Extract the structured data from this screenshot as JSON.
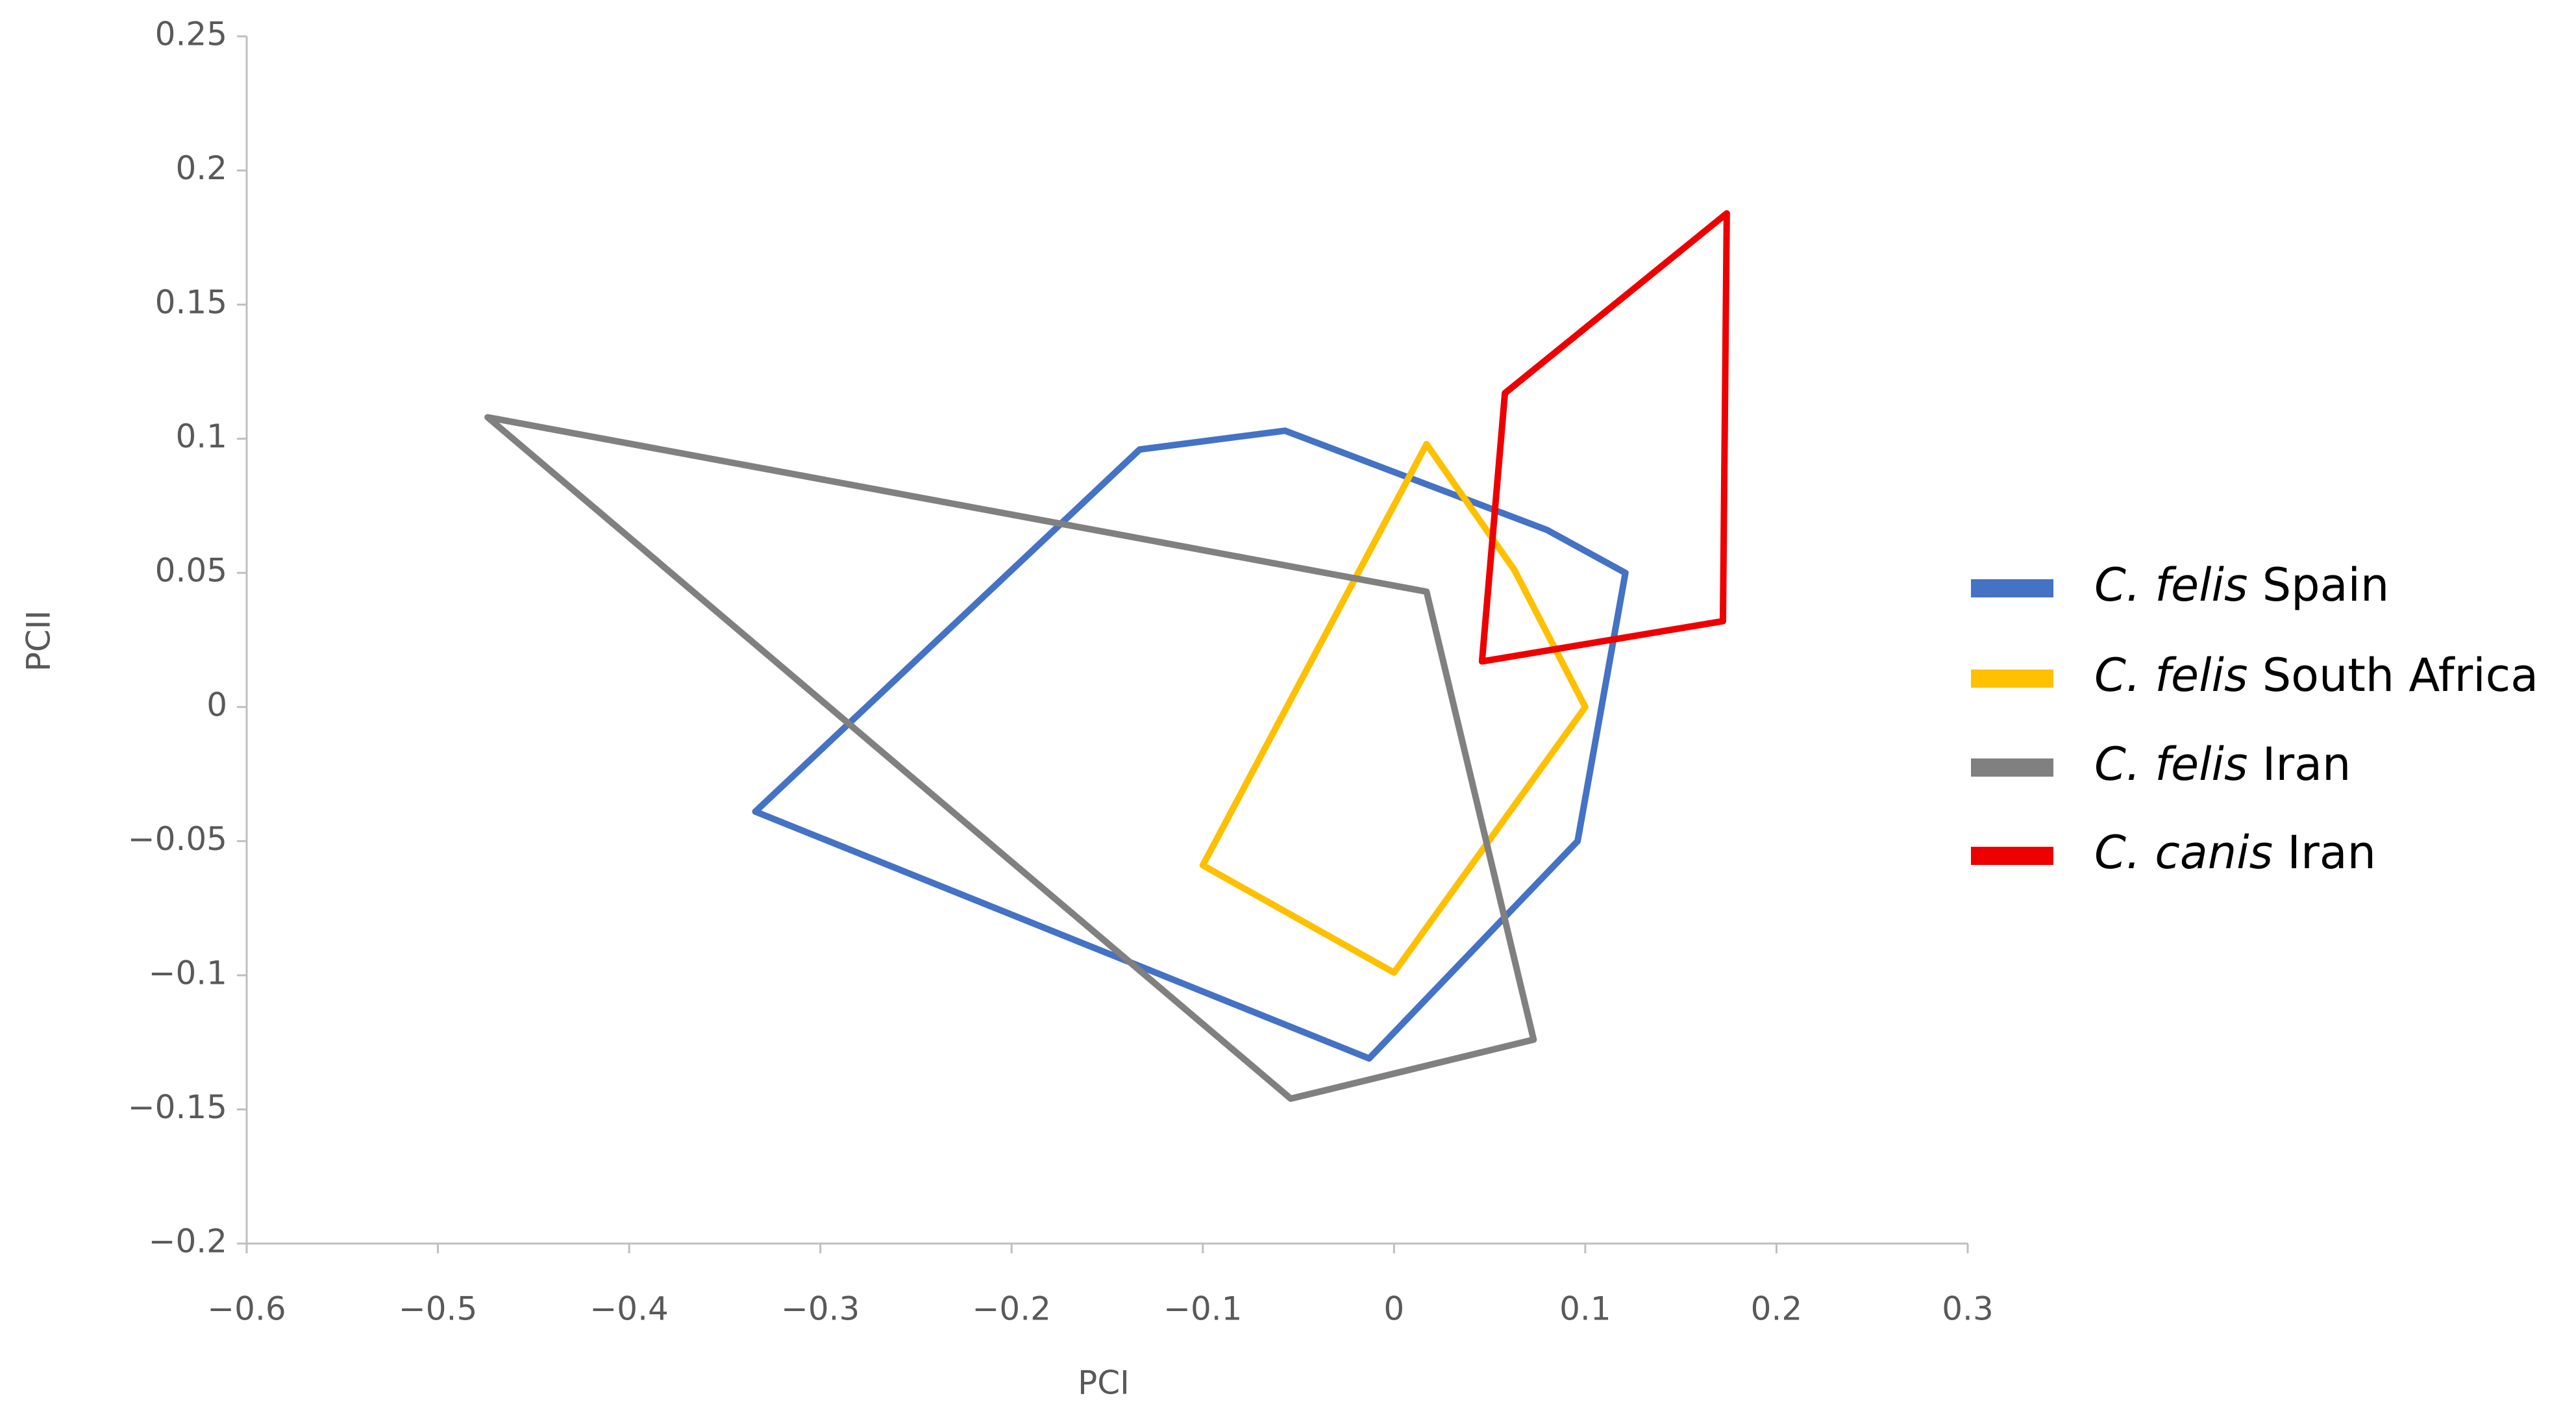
{
  "chart_data": {
    "type": "polygon",
    "x_label": "PCI",
    "y_label": "PCII",
    "xlim": [
      -0.6,
      0.3
    ],
    "ylim": [
      -0.2,
      0.25
    ],
    "xticks": [
      {
        "value": -0.6,
        "label": "−0.6"
      },
      {
        "value": -0.5,
        "label": "−0.5"
      },
      {
        "value": -0.4,
        "label": "−0.4"
      },
      {
        "value": -0.3,
        "label": "−0.3"
      },
      {
        "value": -0.2,
        "label": "−0.2"
      },
      {
        "value": -0.1,
        "label": "−0.1"
      },
      0,
      0.1,
      0.2,
      0.3
    ],
    "yticks": [
      {
        "value": -0.2,
        "label": "−0.2"
      },
      {
        "value": -0.15,
        "label": "−0.15"
      },
      {
        "value": -0.1,
        "label": "−0.1"
      },
      {
        "value": -0.05,
        "label": "−0.05"
      },
      0,
      0.05,
      0.1,
      0.15,
      0.2,
      0.25
    ],
    "legend": "right",
    "series": [
      {
        "name": "C. felis Spain",
        "color": "#4472c4",
        "x": [
          -0.334,
          -0.133,
          -0.057,
          0.08,
          0.121,
          0.096,
          -0.013
        ],
        "values": [
          -0.039,
          0.096,
          0.103,
          0.066,
          0.05,
          -0.05,
          -0.131
        ]
      },
      {
        "name": "C. felis South Africa",
        "color": "#ffc000",
        "x": [
          0.017,
          0.063,
          0.1,
          0.0,
          -0.1
        ],
        "values": [
          0.098,
          0.051,
          0.0,
          -0.099,
          -0.059
        ]
      },
      {
        "name": "C. felis Iran",
        "color": "#808080",
        "x": [
          -0.474,
          0.017,
          0.073,
          -0.054
        ],
        "values": [
          0.108,
          0.043,
          -0.124,
          -0.146
        ]
      },
      {
        "name": "C. canis Iran",
        "color": "#ee0000",
        "x": [
          0.058,
          0.174,
          0.172,
          0.046
        ],
        "values": [
          0.117,
          0.184,
          0.032,
          0.017
        ]
      }
    ]
  }
}
